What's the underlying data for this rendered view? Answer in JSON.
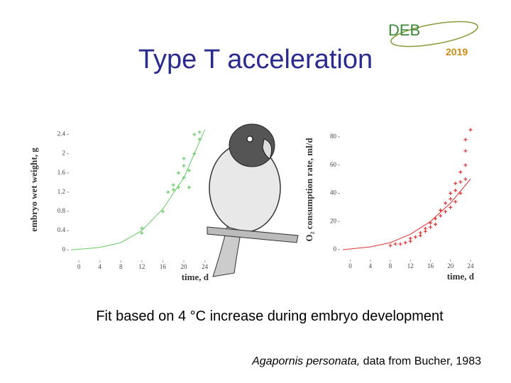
{
  "title": "Type T acceleration",
  "logo": {
    "text": "DEB",
    "year": "2019"
  },
  "caption": "Fit based on 4 °C increase during embryo development",
  "credit": {
    "species": "Agapornis personata,",
    "source": "data from Bucher, 1983"
  },
  "chart_data": [
    {
      "type": "scatter",
      "xlabel": "time, d",
      "ylabel": "embryo wet weight, g",
      "xlim": [
        -1.5,
        25
      ],
      "ylim": [
        -0.1,
        2.6
      ],
      "xticks": [
        0,
        4,
        8,
        12,
        16,
        20,
        24
      ],
      "yticks": [
        0,
        0.4,
        0.8,
        1.2,
        1.6,
        2,
        2.4
      ],
      "series": [
        {
          "mode": "markers",
          "color": "#66cc66",
          "x": [
            12,
            12,
            16,
            17,
            18,
            18,
            19,
            19,
            20,
            20,
            20,
            21,
            21,
            22,
            22,
            23,
            23
          ],
          "values": [
            0.35,
            0.45,
            0.8,
            1.2,
            1.25,
            1.35,
            1.3,
            1.6,
            1.5,
            1.75,
            1.9,
            1.3,
            1.65,
            2.0,
            2.4,
            2.3,
            2.45
          ]
        },
        {
          "mode": "line",
          "color": "#66cc66",
          "x": [
            -1.5,
            0,
            4,
            8,
            12,
            16,
            20,
            24
          ],
          "values": [
            0,
            0.01,
            0.05,
            0.15,
            0.4,
            0.85,
            1.5,
            2.5
          ]
        }
      ]
    },
    {
      "type": "scatter",
      "xlabel": "time, d",
      "ylabel": "O₂ consumption rate, ml/d",
      "xlim": [
        -1.5,
        25
      ],
      "ylim": [
        -3,
        88
      ],
      "xticks": [
        0,
        4,
        8,
        12,
        16,
        20,
        24
      ],
      "yticks": [
        0,
        20,
        40,
        60,
        80
      ],
      "series": [
        {
          "mode": "markers",
          "color": "#dd3333",
          "x": [
            8,
            9,
            10,
            11,
            12,
            12,
            13,
            14,
            14,
            15,
            15,
            16,
            16,
            17,
            17,
            18,
            18,
            19,
            19,
            20,
            20,
            20,
            21,
            21,
            21,
            22,
            22,
            22,
            23,
            23,
            23,
            23,
            24
          ],
          "values": [
            3,
            4,
            4,
            5,
            6,
            8,
            9,
            10,
            12,
            13,
            15,
            16,
            19,
            18,
            22,
            24,
            28,
            27,
            33,
            30,
            36,
            40,
            34,
            42,
            47,
            40,
            48,
            55,
            50,
            60,
            70,
            78,
            85
          ]
        },
        {
          "mode": "line",
          "color": "#dd3333",
          "x": [
            -1.5,
            0,
            4,
            8,
            12,
            16,
            20,
            24
          ],
          "values": [
            0,
            0.5,
            2,
            5,
            11,
            20,
            33,
            50
          ]
        }
      ]
    }
  ]
}
